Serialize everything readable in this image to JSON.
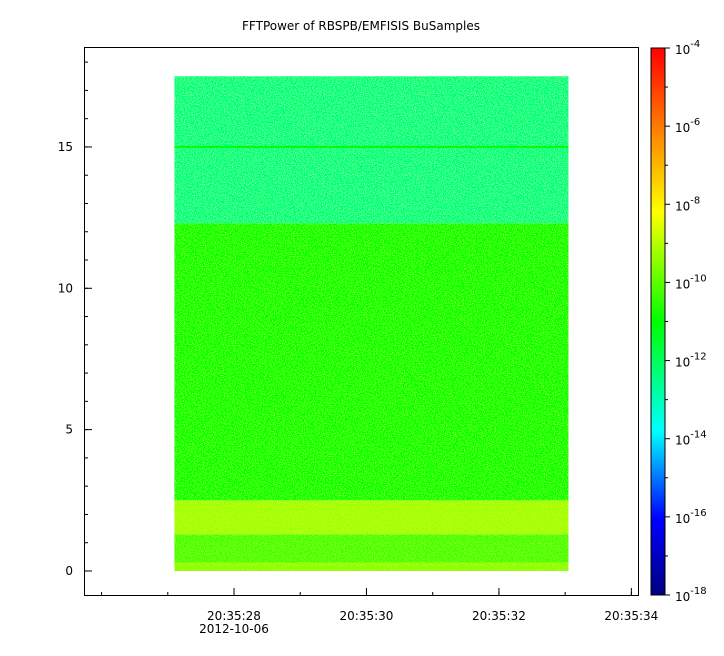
{
  "chart_data": {
    "type": "heatmap",
    "title": "FFTPower of RBSPB/EMFISIS  BuSamples",
    "xlabel": "",
    "ylabel": "",
    "x_axis": {
      "scale": "time",
      "range": [
        "20:35:25.75",
        "20:35:34.10"
      ],
      "ticks": [
        {
          "value": "20:35:28",
          "label": "20:35:28",
          "sublabel": "2012-10-06"
        },
        {
          "value": "20:35:30",
          "label": "20:35:30"
        },
        {
          "value": "20:35:32",
          "label": "20:35:32"
        },
        {
          "value": "20:35:34",
          "label": "20:35:34"
        }
      ],
      "minor_tick_step_seconds": 1
    },
    "y_axis": {
      "scale": "linear",
      "range": [
        -0.85,
        18.5
      ],
      "ticks": [
        0,
        5,
        10,
        15
      ],
      "minor_tick_step": 1
    },
    "data_extent": {
      "x": [
        "20:35:27.10",
        "20:35:33.05"
      ],
      "y": [
        0,
        17.5
      ]
    },
    "colorbar": {
      "scale": "log",
      "range": [
        1e-18,
        0.0001
      ],
      "tick_labels": [
        {
          "base": "10",
          "exp": "-4",
          "value": -4
        },
        {
          "base": "10",
          "exp": "-6",
          "value": -6
        },
        {
          "base": "10",
          "exp": "-8",
          "value": -8
        },
        {
          "base": "10",
          "exp": "-10",
          "value": -10
        },
        {
          "base": "10",
          "exp": "-12",
          "value": -12
        },
        {
          "base": "10",
          "exp": "-14",
          "value": -14
        },
        {
          "base": "10",
          "exp": "-16",
          "value": -16
        },
        {
          "base": "10",
          "exp": "-18",
          "value": -18
        }
      ],
      "colormap": [
        "#000080",
        "#0000ff",
        "#00ffff",
        "#00ff00",
        "#ffff00",
        "#ff8000",
        "#ff0000"
      ]
    },
    "bands": [
      {
        "y_from": 0,
        "y_to": 0.3,
        "log10_power": -9.7
      },
      {
        "y_from": 0.3,
        "y_to": 1.3,
        "log10_power": -10.3
      },
      {
        "y_from": 1.3,
        "y_to": 2.5,
        "log10_power": -9.5
      },
      {
        "y_from": 2.5,
        "y_to": 12.3,
        "log10_power": -10.9
      },
      {
        "y_from": 12.3,
        "y_to": 17.5,
        "log10_power": -12.2
      }
    ],
    "line_feature": {
      "y": 15.0,
      "log10_power": -11.0
    },
    "grid": false,
    "legend": "colorbar-right"
  }
}
